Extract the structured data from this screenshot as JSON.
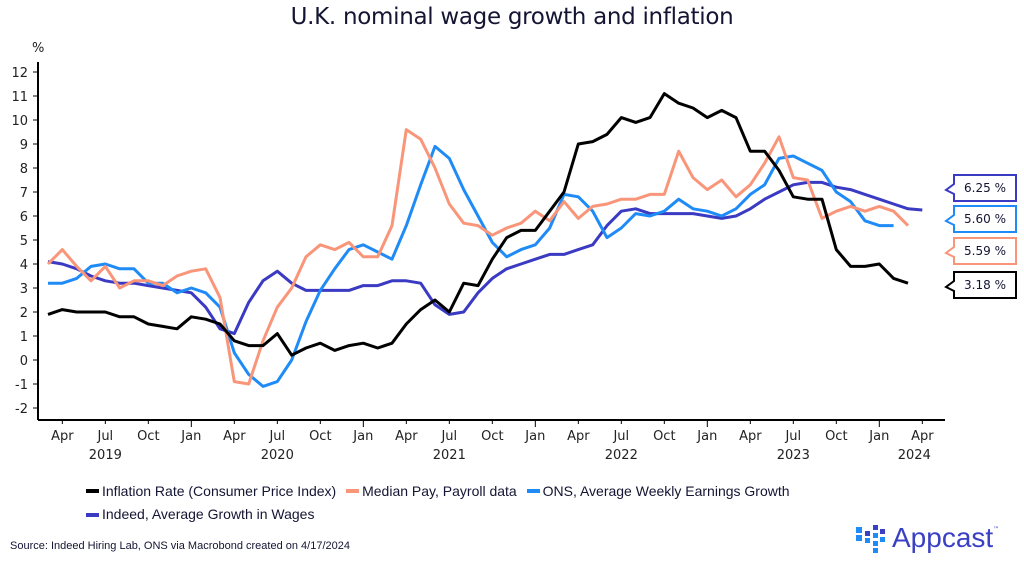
{
  "chart_data": {
    "type": "line",
    "title": "U.K. nominal wage growth and inflation",
    "ylabel": "%",
    "xlabel": "",
    "ylim": [
      -2,
      12
    ],
    "yticks": [
      "12",
      "11",
      "10",
      "9",
      "8",
      "7",
      "6",
      "5",
      "4",
      "3",
      "2",
      "1",
      "0",
      "-1",
      "-2"
    ],
    "xtick_labels": [
      "Apr",
      "Jul",
      "Oct",
      "Jan",
      "Apr",
      "Jul",
      "Oct",
      "Jan",
      "Apr",
      "Jul",
      "Oct",
      "Jan",
      "Apr",
      "Jul",
      "Oct",
      "Jan",
      "Apr",
      "Jul",
      "Oct",
      "Jan",
      "Apr"
    ],
    "year_labels": [
      "2019",
      "2020",
      "2021",
      "2022",
      "2023",
      "2024"
    ],
    "x_start": "Mar 2019",
    "x_end": "Mar 2024",
    "frequency": "monthly",
    "legend_position": "bottom",
    "grid": false,
    "series": [
      {
        "name": "Inflation Rate (Consumer Price Index)",
        "color": "#000000",
        "values": [
          1.9,
          2.1,
          2.0,
          2.0,
          2.0,
          1.8,
          1.8,
          1.5,
          1.4,
          1.3,
          1.8,
          1.7,
          1.5,
          0.8,
          0.6,
          0.6,
          1.1,
          0.2,
          0.5,
          0.7,
          0.4,
          0.6,
          0.7,
          0.5,
          0.7,
          1.5,
          2.1,
          2.5,
          2.0,
          3.2,
          3.1,
          4.2,
          5.1,
          5.4,
          5.4,
          6.2,
          7.0,
          9.0,
          9.1,
          9.4,
          10.1,
          9.9,
          10.1,
          11.1,
          10.7,
          10.5,
          10.1,
          10.4,
          10.1,
          8.7,
          8.7,
          7.9,
          6.8,
          6.7,
          6.7,
          4.6,
          3.9,
          3.9,
          4.0,
          3.4,
          3.2
        ],
        "end_label": "3.18 %"
      },
      {
        "name": "Median Pay, Payroll data",
        "color": "#f9967a",
        "values": [
          4.0,
          4.6,
          3.9,
          3.3,
          3.9,
          3.0,
          3.3,
          3.3,
          3.1,
          3.5,
          3.7,
          3.8,
          2.6,
          -0.9,
          -1.0,
          0.8,
          2.2,
          3.0,
          4.3,
          4.8,
          4.6,
          4.9,
          4.3,
          4.3,
          5.6,
          9.6,
          9.2,
          8.0,
          6.5,
          5.7,
          5.6,
          5.2,
          5.5,
          5.7,
          6.2,
          5.8,
          6.6,
          5.9,
          6.4,
          6.5,
          6.7,
          6.7,
          6.9,
          6.9,
          8.7,
          7.6,
          7.1,
          7.5,
          6.8,
          7.3,
          8.2,
          9.3,
          7.6,
          7.5,
          5.9,
          6.2,
          6.4,
          6.2,
          6.4,
          6.2,
          5.6
        ],
        "end_label": "5.59 %"
      },
      {
        "name": "ONS, Average Weekly Earnings Growth",
        "color": "#1f8bf7",
        "values": [
          3.2,
          3.2,
          3.4,
          3.9,
          4.0,
          3.8,
          3.8,
          3.2,
          3.2,
          2.8,
          3.0,
          2.8,
          2.2,
          0.3,
          -0.6,
          -1.1,
          -0.9,
          0.0,
          1.6,
          2.9,
          3.8,
          4.6,
          4.8,
          4.5,
          4.2,
          5.6,
          7.3,
          8.9,
          8.4,
          7.1,
          6.0,
          4.9,
          4.3,
          4.6,
          4.8,
          5.5,
          6.9,
          6.8,
          6.2,
          5.1,
          5.5,
          6.1,
          6.0,
          6.2,
          6.7,
          6.3,
          6.2,
          6.0,
          6.3,
          6.9,
          7.3,
          8.4,
          8.5,
          8.2,
          7.9,
          7.0,
          6.6,
          5.8,
          5.6,
          5.6
        ],
        "end_label": "5.60 %"
      },
      {
        "name": "Indeed, Average Growth in Wages",
        "color": "#3a3ac2",
        "values": [
          4.1,
          4.0,
          3.8,
          3.5,
          3.3,
          3.2,
          3.2,
          3.1,
          3.0,
          2.9,
          2.8,
          2.2,
          1.3,
          1.1,
          2.4,
          3.3,
          3.7,
          3.2,
          2.9,
          2.9,
          2.9,
          2.9,
          3.1,
          3.1,
          3.3,
          3.3,
          3.2,
          2.3,
          1.9,
          2.0,
          2.8,
          3.4,
          3.8,
          4.0,
          4.2,
          4.4,
          4.4,
          4.6,
          4.8,
          5.6,
          6.2,
          6.3,
          6.1,
          6.1,
          6.1,
          6.1,
          6.0,
          5.9,
          6.0,
          6.3,
          6.7,
          7.0,
          7.3,
          7.4,
          7.4,
          7.2,
          7.1,
          6.9,
          6.7,
          6.5,
          6.3,
          6.25
        ],
        "end_label": "6.25 %"
      }
    ]
  },
  "legend": {
    "items": [
      {
        "label": "Inflation Rate (Consumer Price Index)",
        "color": "#000000"
      },
      {
        "label": "Median Pay, Payroll data",
        "color": "#f9967a"
      },
      {
        "label": "ONS, Average Weekly Earnings Growth",
        "color": "#1f8bf7"
      },
      {
        "label": "Indeed, Average Growth in Wages",
        "color": "#3a3ac2"
      }
    ]
  },
  "source": "Source: Indeed Hiring Lab, ONS via Macrobond created on 4/17/2024",
  "brand": {
    "name": "Appcast",
    "tm": "™",
    "color": "#3a40c4",
    "icon": "grid-dots-icon"
  }
}
